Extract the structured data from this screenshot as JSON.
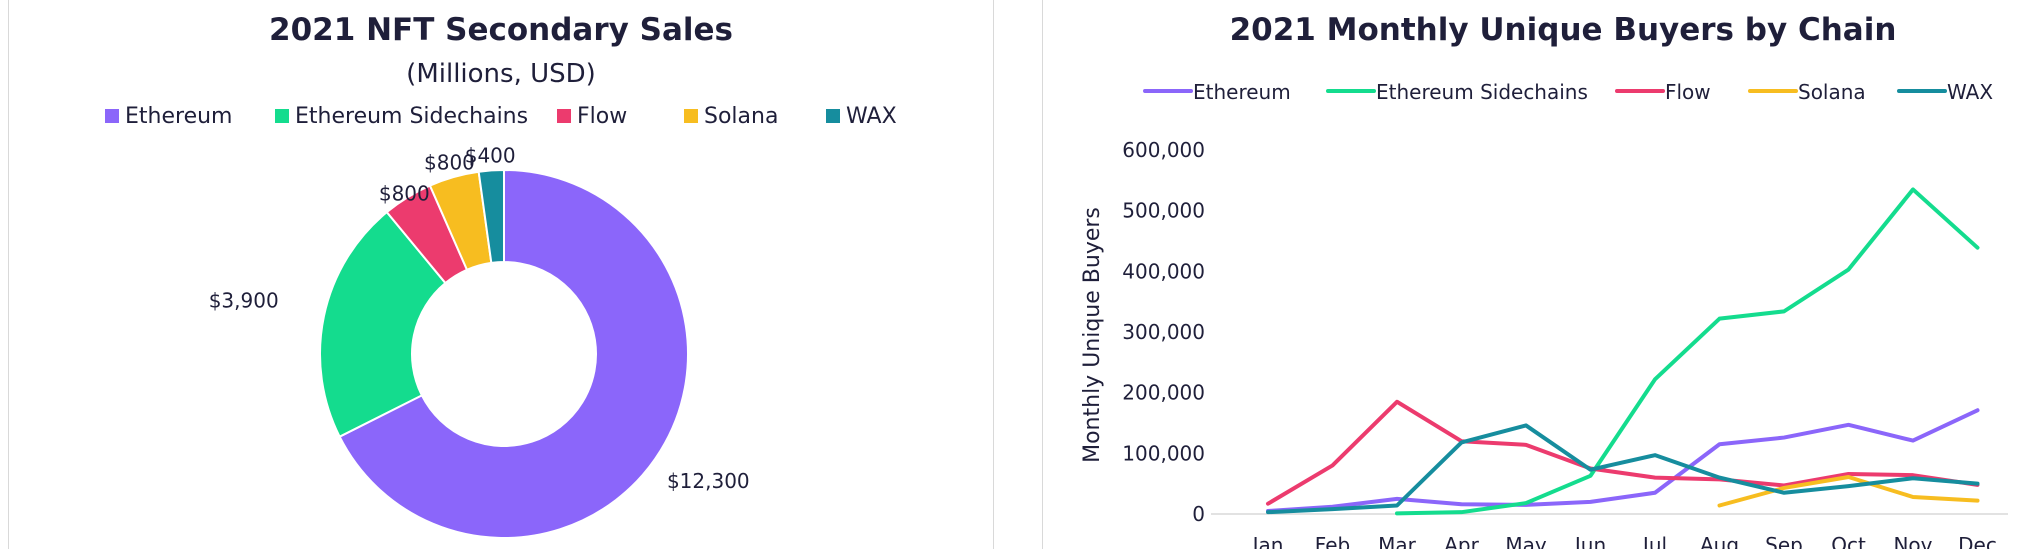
{
  "chart_data": [
    {
      "type": "pie",
      "title": "2021 NFT Secondary Sales",
      "subtitle": "(Millions, USD)",
      "categories": [
        "Ethereum",
        "Ethereum Sidechains",
        "Flow",
        "Solana",
        "WAX"
      ],
      "values": [
        12300,
        3900,
        800,
        800,
        400
      ],
      "labels": [
        "$12,300",
        "$3,900",
        "$800",
        "$800",
        "$400"
      ],
      "colors": [
        "#8B66FA",
        "#14DC8E",
        "#EC3B6E",
        "#F7BD20",
        "#168D9E"
      ],
      "donut": true,
      "legend": "top"
    },
    {
      "type": "line",
      "title": "2021 Monthly Unique Buyers by Chain",
      "xlabel": "",
      "ylabel": "Monthly Unique Buyers",
      "categories": [
        "Jan",
        "Feb",
        "Mar",
        "Apr",
        "May",
        "Jun",
        "Jul",
        "Aug",
        "Sep",
        "Oct",
        "Nov",
        "Dec"
      ],
      "ylim": [
        0,
        600000
      ],
      "yticks": [
        "0",
        "100,000",
        "200,000",
        "300,000",
        "400,000",
        "500,000",
        "600,000"
      ],
      "series": [
        {
          "name": "Ethereum",
          "color": "#8B66FA",
          "values": [
            5000,
            12000,
            25000,
            16000,
            15000,
            20000,
            35000,
            115000,
            126000,
            147000,
            121000,
            171000
          ]
        },
        {
          "name": "Ethereum Sidechains",
          "color": "#14DC8E",
          "values": [
            null,
            null,
            1000,
            3000,
            18000,
            63000,
            222000,
            322000,
            334000,
            403000,
            535000,
            439000
          ]
        },
        {
          "name": "Flow",
          "color": "#EC3B6E",
          "values": [
            17000,
            80000,
            185000,
            120000,
            114000,
            75000,
            60000,
            57000,
            47000,
            66000,
            64000,
            48000
          ]
        },
        {
          "name": "Solana",
          "color": "#F7BD20",
          "values": [
            null,
            null,
            null,
            null,
            null,
            null,
            null,
            14000,
            43000,
            61000,
            28000,
            22000
          ]
        },
        {
          "name": "WAX",
          "color": "#168D9E",
          "values": [
            3000,
            8000,
            14000,
            118000,
            146000,
            73000,
            97000,
            60000,
            35000,
            46000,
            59000,
            50000
          ]
        }
      ],
      "grid": false,
      "legend": "top"
    }
  ]
}
